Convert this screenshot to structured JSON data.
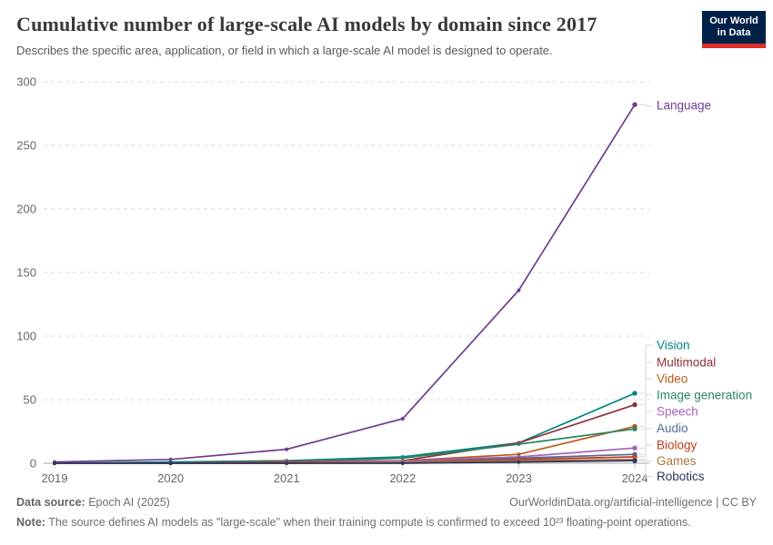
{
  "header": {
    "title": "Cumulative number of large-scale AI models by domain since 2017",
    "subtitle": "Describes the specific area, application, or field in which a large-scale AI model is designed to operate.",
    "logo": {
      "line1": "Our World",
      "line2": "in Data",
      "bg_color": "#002147",
      "accent_color": "#DC2E27"
    }
  },
  "chart_data": {
    "type": "line",
    "title": "Cumulative number of large-scale AI models by domain since 2017",
    "xlabel": "",
    "ylabel": "",
    "x": [
      2019,
      2020,
      2021,
      2022,
      2023,
      2024
    ],
    "x_tick_labels": [
      "2019",
      "2020",
      "2021",
      "2022",
      "2023",
      "2024"
    ],
    "y_ticks": [
      0,
      50,
      100,
      150,
      200,
      250,
      300
    ],
    "ylim": [
      0,
      300
    ],
    "grid": "horizontal-dashed",
    "legend_position": "right-of-line-endpoints",
    "marker": "point-per-year",
    "series": [
      {
        "name": "Language",
        "color": "#6D3E91",
        "values": [
          1,
          3,
          11,
          35,
          136,
          282
        ]
      },
      {
        "name": "Vision",
        "color": "#00847E",
        "values": [
          0,
          1,
          2,
          5,
          16,
          55
        ]
      },
      {
        "name": "Multimodal",
        "color": "#8C3136",
        "values": [
          0,
          0,
          1,
          2,
          16,
          46
        ]
      },
      {
        "name": "Video",
        "color": "#BE5915",
        "values": [
          0,
          0,
          1,
          2,
          7,
          29
        ]
      },
      {
        "name": "Image generation",
        "color": "#2C8465",
        "values": [
          0,
          0,
          1,
          4,
          15,
          27
        ]
      },
      {
        "name": "Speech",
        "color": "#A862BB",
        "values": [
          0,
          0,
          1,
          2,
          5,
          12
        ]
      },
      {
        "name": "Audio",
        "color": "#516C9B",
        "values": [
          0,
          0,
          0,
          1,
          4,
          7
        ]
      },
      {
        "name": "Biology",
        "color": "#C53A1D",
        "values": [
          0,
          0,
          1,
          1,
          3,
          5
        ]
      },
      {
        "name": "Games",
        "color": "#A8763C",
        "values": [
          0,
          0,
          0,
          1,
          2,
          3
        ]
      },
      {
        "name": "Robotics",
        "color": "#2D3563",
        "values": [
          0,
          0,
          0,
          0,
          1,
          2
        ]
      }
    ],
    "colors": {
      "gridline": "#DBDBDB",
      "axis_text": "#666666",
      "zero_line": "#A6A6A6",
      "connector": "#D9D9D9"
    }
  },
  "footer": {
    "source_label": "Data source:",
    "source_value": " Epoch AI (2025)",
    "attribution": "OurWorldinData.org/artificial-intelligence | CC BY",
    "note_label": "Note:",
    "note_value": " The source defines AI models as \"large-scale\" when their training compute is confirmed to exceed 10²³ floating-point operations."
  }
}
